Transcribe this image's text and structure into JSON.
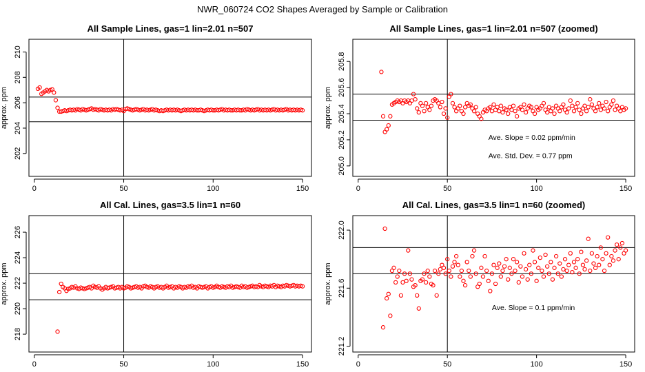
{
  "page_title": "NWR_060724  CO2 Shapes Averaged by Sample or Calibration",
  "colors": {
    "points": "#ff0000",
    "lines": "#000000",
    "background": "#ffffff"
  },
  "chart_data": [
    {
      "type": "scatter",
      "title": "All Sample Lines, gas=1 lin=2.01 n=507",
      "xlabel": "",
      "ylabel": "approx. ppm",
      "xlim": [
        -3,
        155
      ],
      "ylim": [
        200.2,
        211.0
      ],
      "x_ticks": [
        0,
        50,
        100,
        150
      ],
      "y_ticks": [
        202,
        204,
        206,
        208,
        210
      ],
      "hlines": [
        206.45,
        204.5
      ],
      "vline": 50,
      "annotations": [],
      "x": [
        2,
        3,
        4,
        5,
        6,
        7,
        8,
        9,
        10,
        11,
        12,
        13,
        14,
        15,
        16,
        17,
        18,
        19,
        20,
        21,
        22,
        23,
        24,
        25,
        26,
        27,
        28,
        29,
        30,
        31,
        32,
        33,
        34,
        35,
        36,
        37,
        38,
        39,
        40,
        41,
        42,
        43,
        44,
        45,
        46,
        47,
        48,
        49,
        50,
        51,
        52,
        53,
        54,
        55,
        56,
        57,
        58,
        59,
        60,
        61,
        62,
        63,
        64,
        65,
        66,
        67,
        68,
        69,
        70,
        71,
        72,
        73,
        74,
        75,
        76,
        77,
        78,
        79,
        80,
        81,
        82,
        83,
        84,
        85,
        86,
        87,
        88,
        89,
        90,
        91,
        92,
        93,
        94,
        95,
        96,
        97,
        98,
        99,
        100,
        101,
        102,
        103,
        104,
        105,
        106,
        107,
        108,
        109,
        110,
        111,
        112,
        113,
        114,
        115,
        116,
        117,
        118,
        119,
        120,
        121,
        122,
        123,
        124,
        125,
        126,
        127,
        128,
        129,
        130,
        131,
        132,
        133,
        134,
        135,
        136,
        137,
        138,
        139,
        140,
        141,
        142,
        143,
        144,
        145,
        146,
        147,
        148,
        149,
        150
      ],
      "y": [
        207.1,
        207.2,
        206.7,
        206.8,
        206.9,
        207.0,
        206.9,
        207.0,
        207.05,
        206.8,
        206.2,
        205.6,
        205.3,
        205.3,
        205.35,
        205.4,
        205.35,
        205.4,
        205.45,
        205.4,
        205.45,
        205.4,
        205.5,
        205.45,
        205.4,
        205.5,
        205.45,
        205.4,
        205.45,
        205.5,
        205.55,
        205.45,
        205.5,
        205.45,
        205.4,
        205.5,
        205.45,
        205.4,
        205.45,
        205.4,
        205.45,
        205.4,
        205.5,
        205.45,
        205.5,
        205.45,
        205.4,
        205.45,
        205.35,
        205.5,
        205.55,
        205.5,
        205.45,
        205.4,
        205.45,
        205.5,
        205.45,
        205.4,
        205.45,
        205.5,
        205.4,
        205.45,
        205.4,
        205.45,
        205.5,
        205.4,
        205.45,
        205.4,
        205.35,
        205.4,
        205.35,
        205.4,
        205.45,
        205.4,
        205.45,
        205.4,
        205.45,
        205.4,
        205.45,
        205.4,
        205.35,
        205.4,
        205.45,
        205.4,
        205.45,
        205.4,
        205.45,
        205.4,
        205.45,
        205.4,
        205.4,
        205.45,
        205.4,
        205.35,
        205.4,
        205.45,
        205.4,
        205.45,
        205.4,
        205.4,
        205.45,
        205.4,
        205.45,
        205.5,
        205.4,
        205.45,
        205.4,
        205.45,
        205.4,
        205.4,
        205.45,
        205.4,
        205.45,
        205.4,
        205.4,
        205.45,
        205.4,
        205.5,
        205.45,
        205.4,
        205.45,
        205.4,
        205.45,
        205.5,
        205.4,
        205.45,
        205.4,
        205.45,
        205.4,
        205.45,
        205.4,
        205.45,
        205.5,
        205.4,
        205.45,
        205.4,
        205.45,
        205.4,
        205.45,
        205.5,
        205.4,
        205.45,
        205.4,
        205.45,
        205.4,
        205.45,
        205.4,
        205.45,
        205.4
      ]
    },
    {
      "type": "scatter",
      "title": "All Sample Lines, gas=1 lin=2.01 n=507 (zoomed)",
      "xlabel": "",
      "ylabel": "approx. ppm",
      "xlim": [
        -3,
        155
      ],
      "ylim": [
        204.92,
        205.97
      ],
      "x_ticks": [
        0,
        50,
        100,
        150
      ],
      "y_ticks": [
        205.0,
        205.2,
        205.4,
        205.6,
        205.8
      ],
      "y_tick_labels": [
        "205.0",
        "205.2",
        "205.4",
        "205.6",
        "205.8"
      ],
      "hlines": [
        205.55,
        205.35
      ],
      "vline": 50,
      "annotations": [
        {
          "text": "Ave. Slope =  0.02  ppm/min",
          "x": 73,
          "y": 205.2
        },
        {
          "text": "Ave. Std. Dev. =  0.77  ppm",
          "x": 73,
          "y": 205.06
        }
      ],
      "x": [
        13,
        14,
        15,
        16,
        17,
        18,
        19,
        20,
        21,
        22,
        23,
        24,
        25,
        26,
        27,
        28,
        29,
        30,
        31,
        32,
        33,
        34,
        35,
        36,
        37,
        38,
        39,
        40,
        41,
        42,
        43,
        44,
        45,
        46,
        47,
        48,
        49,
        50,
        51,
        52,
        53,
        54,
        55,
        56,
        57,
        58,
        59,
        60,
        61,
        62,
        63,
        64,
        65,
        66,
        67,
        68,
        69,
        70,
        71,
        72,
        73,
        74,
        75,
        76,
        77,
        78,
        79,
        80,
        81,
        82,
        83,
        84,
        85,
        86,
        87,
        88,
        89,
        90,
        91,
        92,
        93,
        94,
        95,
        96,
        97,
        98,
        99,
        100,
        101,
        102,
        103,
        104,
        105,
        106,
        107,
        108,
        109,
        110,
        111,
        112,
        113,
        114,
        115,
        116,
        117,
        118,
        119,
        120,
        121,
        122,
        123,
        124,
        125,
        126,
        127,
        128,
        129,
        130,
        131,
        132,
        133,
        134,
        135,
        136,
        137,
        138,
        139,
        140,
        141,
        142,
        143,
        144,
        145,
        146,
        147,
        148,
        149,
        150
      ],
      "y": [
        205.72,
        205.38,
        205.26,
        205.28,
        205.31,
        205.38,
        205.47,
        205.48,
        205.49,
        205.5,
        205.49,
        205.5,
        205.48,
        205.5,
        205.49,
        205.5,
        205.48,
        205.5,
        205.55,
        205.51,
        205.44,
        205.41,
        205.48,
        205.46,
        205.42,
        205.48,
        205.45,
        205.43,
        205.46,
        205.5,
        205.51,
        205.5,
        205.48,
        205.45,
        205.49,
        205.4,
        205.44,
        205.37,
        205.53,
        205.55,
        205.48,
        205.45,
        205.42,
        205.44,
        205.46,
        205.42,
        205.4,
        205.45,
        205.48,
        205.46,
        205.47,
        205.44,
        205.42,
        205.45,
        205.4,
        205.38,
        205.36,
        205.41,
        205.43,
        205.42,
        205.44,
        205.45,
        205.42,
        205.47,
        205.43,
        205.45,
        205.42,
        205.46,
        205.41,
        205.44,
        205.43,
        205.4,
        205.45,
        205.43,
        205.46,
        205.42,
        205.38,
        205.44,
        205.45,
        205.43,
        205.47,
        205.41,
        205.44,
        205.46,
        205.45,
        205.42,
        205.4,
        205.45,
        205.43,
        205.44,
        205.46,
        205.48,
        205.43,
        205.41,
        205.45,
        205.42,
        205.44,
        205.4,
        205.46,
        205.44,
        205.42,
        205.45,
        205.47,
        205.43,
        205.41,
        205.44,
        205.5,
        205.46,
        205.42,
        205.45,
        205.48,
        205.43,
        205.4,
        205.44,
        205.46,
        205.42,
        205.45,
        205.51,
        205.47,
        205.44,
        205.42,
        205.45,
        205.48,
        205.43,
        205.46,
        205.44,
        205.49,
        205.42,
        205.45,
        205.47,
        205.5,
        205.43,
        205.46,
        205.44,
        205.42,
        205.45,
        205.43,
        205.44
      ]
    },
    {
      "type": "scatter",
      "title": "All Cal. Lines, gas=3.5 lin=1 n=60",
      "xlabel": "",
      "ylabel": "approx. ppm",
      "xlim": [
        -3,
        155
      ],
      "ylim": [
        216.6,
        227.3
      ],
      "x_ticks": [
        0,
        50,
        100,
        150
      ],
      "y_ticks": [
        218,
        220,
        222,
        224,
        226
      ],
      "hlines": [
        222.75,
        220.7
      ],
      "vline": 50,
      "annotations": [],
      "x": [
        13,
        14,
        15,
        16,
        17,
        18,
        19,
        20,
        21,
        22,
        23,
        24,
        25,
        26,
        27,
        28,
        29,
        30,
        31,
        32,
        33,
        34,
        35,
        36,
        37,
        38,
        39,
        40,
        41,
        42,
        43,
        44,
        45,
        46,
        47,
        48,
        49,
        50,
        51,
        52,
        53,
        54,
        55,
        56,
        57,
        58,
        59,
        60,
        61,
        62,
        63,
        64,
        65,
        66,
        67,
        68,
        69,
        70,
        71,
        72,
        73,
        74,
        75,
        76,
        77,
        78,
        79,
        80,
        81,
        82,
        83,
        84,
        85,
        86,
        87,
        88,
        89,
        90,
        91,
        92,
        93,
        94,
        95,
        96,
        97,
        98,
        99,
        100,
        101,
        102,
        103,
        104,
        105,
        106,
        107,
        108,
        109,
        110,
        111,
        112,
        113,
        114,
        115,
        116,
        117,
        118,
        119,
        120,
        121,
        122,
        123,
        124,
        125,
        126,
        127,
        128,
        129,
        130,
        131,
        132,
        133,
        134,
        135,
        136,
        137,
        138,
        139,
        140,
        141,
        142,
        143,
        144,
        145,
        146,
        147,
        148,
        149,
        150
      ],
      "y": [
        218.2,
        221.3,
        221.95,
        221.7,
        221.6,
        221.4,
        221.55,
        221.6,
        221.7,
        221.65,
        221.75,
        221.6,
        221.55,
        221.65,
        221.6,
        221.55,
        221.6,
        221.65,
        221.7,
        221.6,
        221.8,
        221.7,
        221.65,
        221.75,
        221.6,
        221.5,
        221.6,
        221.7,
        221.6,
        221.65,
        221.7,
        221.75,
        221.6,
        221.65,
        221.7,
        221.6,
        221.7,
        221.6,
        221.65,
        221.75,
        221.7,
        221.6,
        221.65,
        221.7,
        221.75,
        221.65,
        221.7,
        221.6,
        221.75,
        221.8,
        221.7,
        221.65,
        221.75,
        221.7,
        221.6,
        221.7,
        221.75,
        221.65,
        221.7,
        221.6,
        221.7,
        221.8,
        221.65,
        221.7,
        221.75,
        221.6,
        221.7,
        221.65,
        221.75,
        221.7,
        221.6,
        221.7,
        221.65,
        221.75,
        221.7,
        221.8,
        221.65,
        221.7,
        221.6,
        221.75,
        221.7,
        221.65,
        221.7,
        221.75,
        221.6,
        221.7,
        221.75,
        221.65,
        221.7,
        221.8,
        221.7,
        221.65,
        221.75,
        221.7,
        221.65,
        221.75,
        221.7,
        221.8,
        221.65,
        221.7,
        221.75,
        221.7,
        221.65,
        221.8,
        221.7,
        221.75,
        221.65,
        221.7,
        221.75,
        221.8,
        221.7,
        221.75,
        221.7,
        221.85,
        221.75,
        221.7,
        221.8,
        221.75,
        221.7,
        221.8,
        221.75,
        221.85,
        221.7,
        221.8,
        221.75,
        221.7,
        221.8,
        221.75,
        221.85,
        221.8,
        221.75,
        221.8,
        221.85,
        221.75,
        221.8,
        221.75,
        221.8,
        221.75
      ]
    },
    {
      "type": "scatter",
      "title": "All Cal. Lines, gas=3.5 lin=1 n=60 (zoomed)",
      "xlabel": "",
      "ylabel": "approx. ppm",
      "xlim": [
        -3,
        155
      ],
      "ylim": [
        221.16,
        222.1
      ],
      "x_ticks": [
        0,
        50,
        100,
        150
      ],
      "y_ticks": [
        221.2,
        221.6,
        222.0
      ],
      "y_tick_labels": [
        "221.2",
        "221.6",
        "222.0"
      ],
      "hlines": [
        221.88,
        221.7
      ],
      "vline": 50,
      "annotations": [
        {
          "text": "Ave. Slope =  0.1  ppm/min",
          "x": 75,
          "y": 221.45
        }
      ],
      "x": [
        14,
        15,
        16,
        17,
        18,
        19,
        20,
        21,
        22,
        23,
        24,
        25,
        26,
        27,
        28,
        29,
        30,
        31,
        32,
        33,
        34,
        35,
        36,
        37,
        38,
        39,
        40,
        41,
        42,
        43,
        44,
        45,
        46,
        47,
        48,
        49,
        50,
        51,
        52,
        53,
        54,
        55,
        56,
        57,
        58,
        59,
        60,
        61,
        62,
        63,
        64,
        65,
        66,
        67,
        68,
        69,
        70,
        71,
        72,
        73,
        74,
        75,
        76,
        77,
        78,
        79,
        80,
        81,
        82,
        83,
        84,
        85,
        86,
        87,
        88,
        89,
        90,
        91,
        92,
        93,
        94,
        95,
        96,
        97,
        98,
        99,
        100,
        101,
        102,
        103,
        104,
        105,
        106,
        107,
        108,
        109,
        110,
        111,
        112,
        113,
        114,
        115,
        116,
        117,
        118,
        119,
        120,
        121,
        122,
        123,
        124,
        125,
        126,
        127,
        128,
        129,
        130,
        131,
        132,
        133,
        134,
        135,
        136,
        137,
        138,
        139,
        140,
        141,
        142,
        143,
        144,
        145,
        146,
        147,
        148,
        149,
        150
      ],
      "y": [
        221.33,
        222.01,
        221.53,
        221.56,
        221.41,
        221.72,
        221.74,
        221.64,
        221.68,
        221.72,
        221.55,
        221.64,
        221.7,
        221.65,
        221.86,
        221.7,
        221.66,
        221.61,
        221.62,
        221.55,
        221.46,
        221.65,
        221.66,
        221.7,
        221.64,
        221.72,
        221.68,
        221.63,
        221.62,
        221.72,
        221.55,
        221.7,
        221.73,
        221.76,
        221.74,
        221.7,
        221.8,
        221.72,
        221.68,
        221.75,
        221.78,
        221.82,
        221.76,
        221.68,
        221.72,
        221.65,
        221.62,
        221.78,
        221.72,
        221.68,
        221.82,
        221.86,
        221.7,
        221.61,
        221.63,
        221.74,
        221.68,
        221.82,
        221.72,
        221.65,
        221.58,
        221.7,
        221.76,
        221.63,
        221.74,
        221.77,
        221.68,
        221.72,
        221.75,
        221.8,
        221.66,
        221.74,
        221.7,
        221.8,
        221.72,
        221.78,
        221.64,
        221.75,
        221.68,
        221.84,
        221.73,
        221.66,
        221.76,
        221.7,
        221.86,
        221.78,
        221.65,
        221.74,
        221.81,
        221.72,
        221.68,
        221.83,
        221.75,
        221.7,
        221.78,
        221.66,
        221.74,
        221.82,
        221.7,
        221.77,
        221.68,
        221.73,
        221.8,
        221.72,
        221.76,
        221.84,
        221.71,
        221.78,
        221.74,
        221.8,
        221.7,
        221.85,
        221.76,
        221.73,
        221.79,
        221.94,
        221.72,
        221.84,
        221.77,
        221.74,
        221.82,
        221.76,
        221.88,
        221.8,
        221.72,
        221.84,
        221.95,
        221.76,
        221.82,
        221.79,
        221.86,
        221.9,
        221.8,
        221.88,
        221.91,
        221.84,
        221.86
      ]
    }
  ]
}
